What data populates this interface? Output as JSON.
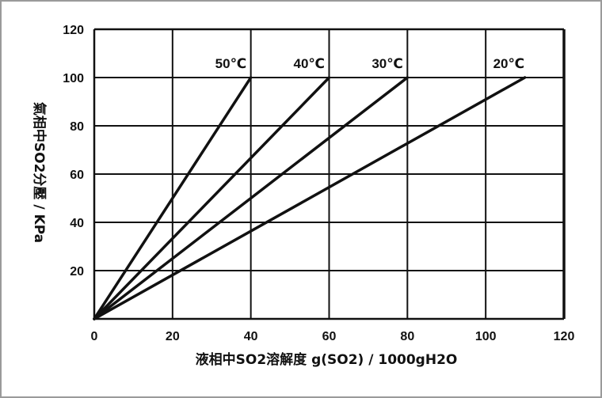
{
  "chart_data": {
    "type": "line",
    "xlabel": "液相中SO2溶解度 g(SO2) / 1000gH2O",
    "ylabel": "氣相中SO2分壓 / KPa",
    "xlim": [
      0,
      120
    ],
    "ylim": [
      0,
      120
    ],
    "xticks": [
      0,
      20,
      40,
      60,
      80,
      100,
      120
    ],
    "yticks": [
      20,
      40,
      60,
      80,
      100,
      120
    ],
    "grid": true,
    "series": [
      {
        "name": "50℃",
        "x": [
          0,
          40
        ],
        "y": [
          0,
          100
        ]
      },
      {
        "name": "40℃",
        "x": [
          0,
          60
        ],
        "y": [
          0,
          100
        ]
      },
      {
        "name": "30℃",
        "x": [
          0,
          80
        ],
        "y": [
          0,
          100
        ]
      },
      {
        "name": "20℃",
        "x": [
          0,
          110
        ],
        "y": [
          0,
          100
        ]
      }
    ]
  }
}
